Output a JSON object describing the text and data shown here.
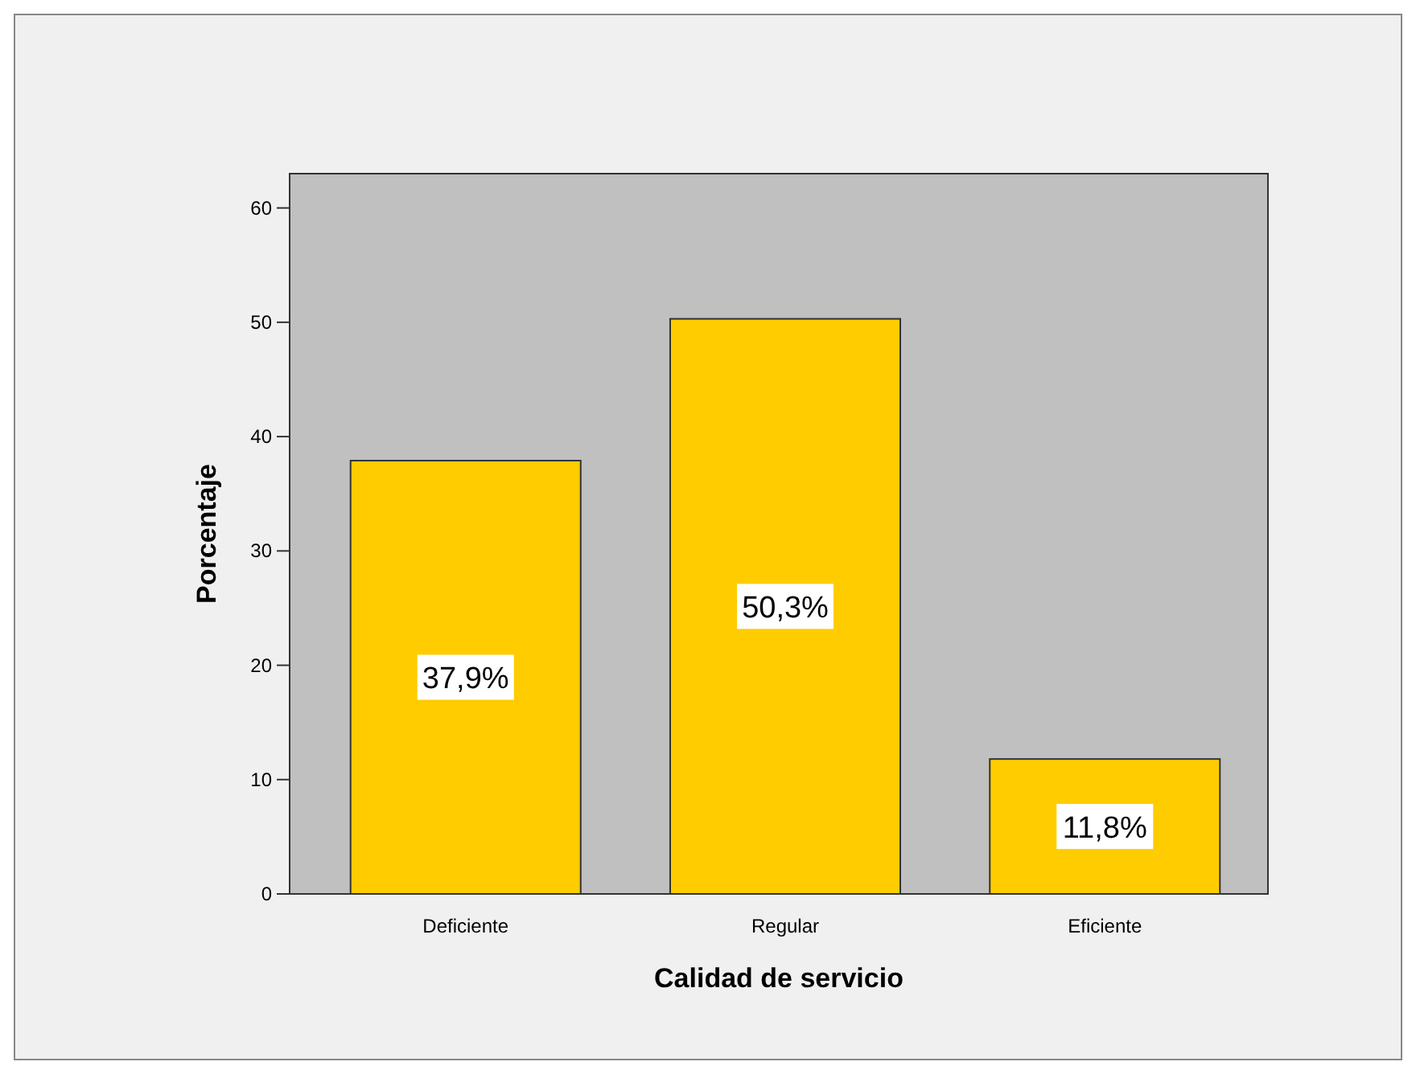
{
  "chart_data": {
    "type": "bar",
    "xlabel": "Calidad de servicio",
    "ylabel": "Porcentaje",
    "categories": [
      "Deficiente",
      "Regular",
      "Eficiente"
    ],
    "values": [
      37.9,
      50.3,
      11.8
    ],
    "value_labels": [
      "37,9%",
      "50,3%",
      "11,8%"
    ],
    "color": "#ffcc00",
    "ylim": [
      0,
      63
    ],
    "yticks": [
      0,
      10,
      20,
      30,
      40,
      50,
      60
    ]
  }
}
